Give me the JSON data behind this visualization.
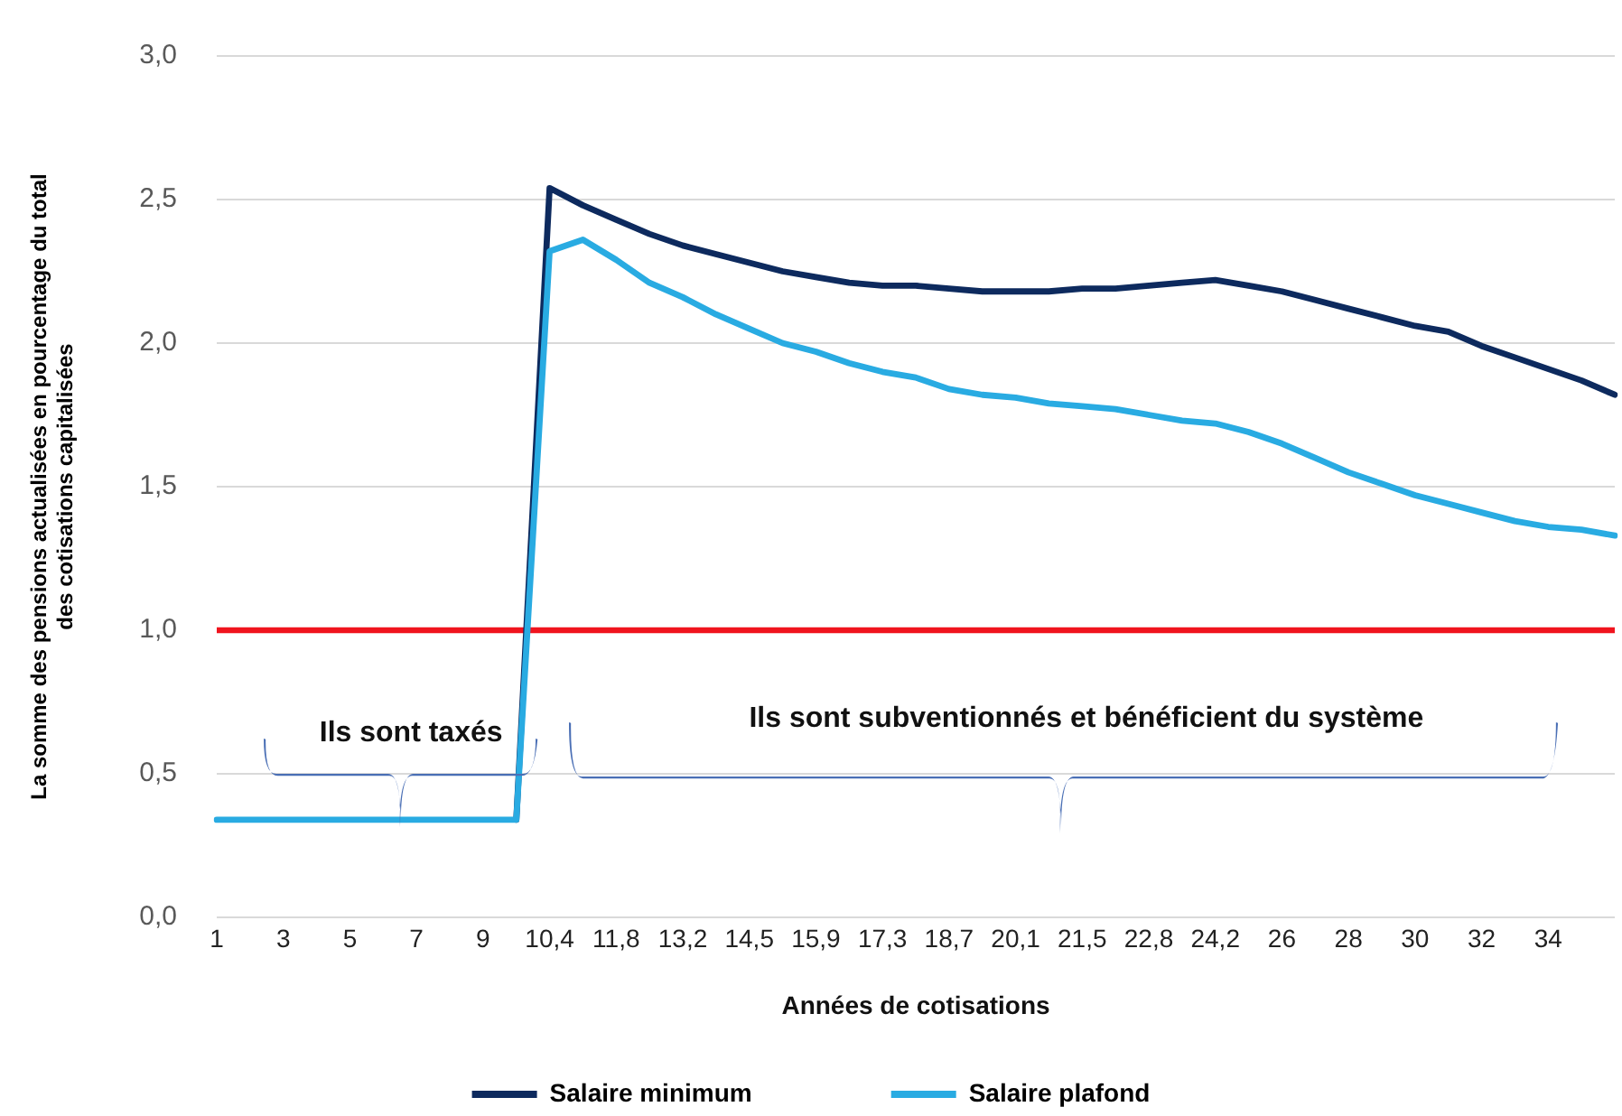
{
  "chart_data": {
    "type": "line",
    "xlabel": "Années de cotisations",
    "ylabel": "La somme des pensions actualisées en pourcentage du total des cotisations capitalisées",
    "categories": [
      "1",
      null,
      "3",
      null,
      "5",
      null,
      "7",
      null,
      "9",
      null,
      "10,4",
      null,
      "11,8",
      null,
      "13,2",
      null,
      "14,5",
      null,
      "15,9",
      null,
      "17,3",
      null,
      "18,7",
      null,
      "20,1",
      null,
      "21,5",
      null,
      "22,8",
      null,
      "24,2",
      null,
      "26",
      null,
      "28",
      null,
      "30",
      null,
      "32",
      null,
      "34",
      null,
      null
    ],
    "series": [
      {
        "name": "Salaire minimum",
        "color": "#0d2a5e",
        "values": [
          null,
          null,
          null,
          null,
          null,
          null,
          null,
          null,
          null,
          0.34,
          2.54,
          2.48,
          2.43,
          2.38,
          2.34,
          2.31,
          2.28,
          2.25,
          2.23,
          2.21,
          2.2,
          2.2,
          2.19,
          2.18,
          2.18,
          2.18,
          2.19,
          2.19,
          2.2,
          2.21,
          2.22,
          2.2,
          2.18,
          2.15,
          2.12,
          2.09,
          2.06,
          2.04,
          1.99,
          1.95,
          1.91,
          1.87,
          1.82
        ]
      },
      {
        "name": "Salaire plafond",
        "color": "#29abe2",
        "values": [
          0.34,
          0.34,
          0.34,
          0.34,
          0.34,
          0.34,
          0.34,
          0.34,
          0.34,
          0.34,
          2.32,
          2.36,
          2.29,
          2.21,
          2.16,
          2.1,
          2.05,
          2.0,
          1.97,
          1.93,
          1.9,
          1.88,
          1.84,
          1.82,
          1.81,
          1.79,
          1.78,
          1.77,
          1.75,
          1.73,
          1.72,
          1.69,
          1.65,
          1.6,
          1.55,
          1.51,
          1.47,
          1.44,
          1.41,
          1.38,
          1.36,
          1.35,
          1.33
        ]
      }
    ],
    "ylim": [
      0,
      3
    ],
    "yticks": [
      {
        "value": 0,
        "label": "0,0"
      },
      {
        "value": 0.5,
        "label": "0,5"
      },
      {
        "value": 1,
        "label": "1,0"
      },
      {
        "value": 1.5,
        "label": "1,5"
      },
      {
        "value": 2,
        "label": "2,0"
      },
      {
        "value": 2.5,
        "label": "2,5"
      },
      {
        "value": 3,
        "label": "3,0"
      }
    ],
    "ref_lines": [
      {
        "axis": "y",
        "value": 1,
        "color": "#f0141e"
      }
    ],
    "annotations": [
      "Ils sont taxés",
      "Ils sont subventionnés et bénéficient du système"
    ],
    "grid": "y",
    "legend": "bottom",
    "marker": "none"
  }
}
